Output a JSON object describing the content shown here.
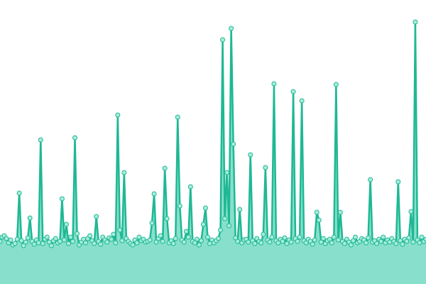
{
  "chart_data": {
    "type": "area",
    "line_color": "#1fb894",
    "fill_color": "#88e0cc",
    "marker_fill": "#a8ecdc",
    "ylim": [
      0,
      400
    ],
    "values": [
      60,
      66,
      68,
      64,
      58,
      62,
      55,
      57,
      63,
      128,
      61,
      54,
      59,
      65,
      93,
      60,
      56,
      62,
      58,
      203,
      57,
      63,
      66,
      59,
      54,
      61,
      64,
      58,
      60,
      120,
      62,
      84,
      57,
      66,
      60,
      206,
      71,
      55,
      59,
      63,
      58,
      64,
      68,
      61,
      57,
      95,
      60,
      56,
      66,
      62,
      59,
      65,
      63,
      70,
      58,
      238,
      76,
      61,
      157,
      64,
      60,
      57,
      55,
      62,
      58,
      66,
      61,
      63,
      59,
      60,
      62,
      86,
      127,
      59,
      64,
      68,
      60,
      163,
      92,
      58,
      61,
      57,
      64,
      235,
      110,
      62,
      59,
      74,
      66,
      137,
      60,
      58,
      63,
      55,
      61,
      84,
      107,
      66,
      57,
      62,
      58,
      61,
      64,
      76,
      344,
      92,
      157,
      82,
      360,
      197,
      65,
      60,
      105,
      58,
      62,
      63,
      59,
      182,
      61,
      57,
      64,
      60,
      58,
      70,
      164,
      62,
      59,
      66,
      282,
      61,
      58,
      63,
      60,
      65,
      57,
      62,
      59,
      271,
      64,
      60,
      66,
      258,
      61,
      58,
      63,
      60,
      56,
      62,
      101,
      90,
      59,
      64,
      57,
      61,
      63,
      58,
      66,
      281,
      62,
      101,
      60,
      57,
      63,
      59,
      55,
      61,
      66,
      58,
      60,
      64,
      62,
      58,
      65,
      147,
      59,
      61,
      57,
      63,
      60,
      66,
      58,
      62,
      59,
      64,
      60,
      57,
      144,
      61,
      56,
      63,
      60,
      65,
      102,
      59,
      369,
      62,
      58,
      66,
      60,
      63
    ]
  }
}
